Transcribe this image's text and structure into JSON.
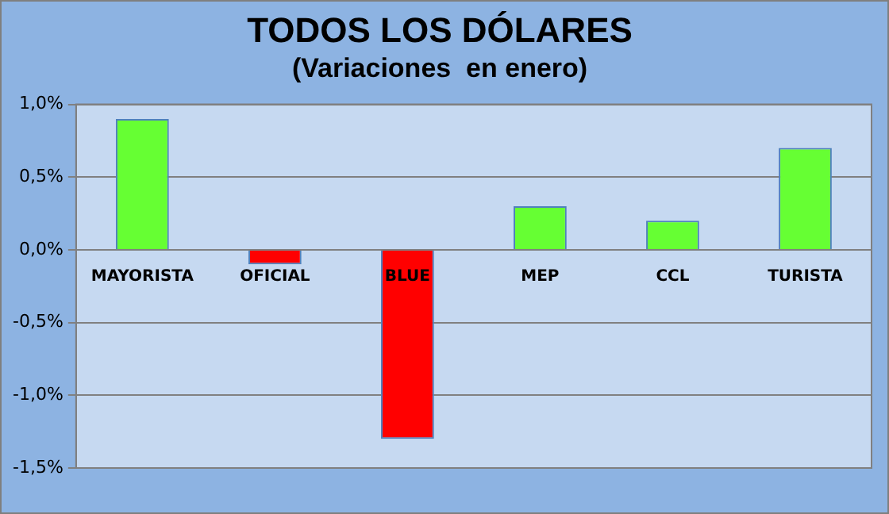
{
  "chart_data": {
    "type": "bar",
    "title": "TODOS LOS DÓLARES",
    "subtitle": "(Variaciones  en enero)",
    "categories": [
      "MAYORISTA",
      "OFICIAL",
      "BLUE",
      "MEP",
      "CCL",
      "TURISTA"
    ],
    "values": [
      0.9,
      -0.1,
      -1.3,
      0.3,
      0.2,
      0.7
    ],
    "colors": [
      "#66ff33",
      "#ff0000",
      "#ff0000",
      "#66ff33",
      "#66ff33",
      "#66ff33"
    ],
    "ylim": [
      -1.5,
      1.0
    ],
    "yticks": [
      {
        "value": -1.5,
        "label": "-1,5%"
      },
      {
        "value": -1.0,
        "label": "-1,0%"
      },
      {
        "value": -0.5,
        "label": "-0,5%"
      },
      {
        "value": 0,
        "label": "0,0%"
      },
      {
        "value": 0.5,
        "label": "0,5%"
      },
      {
        "value": 1.0,
        "label": "1,0%"
      }
    ],
    "grid": "y",
    "legend": false
  }
}
